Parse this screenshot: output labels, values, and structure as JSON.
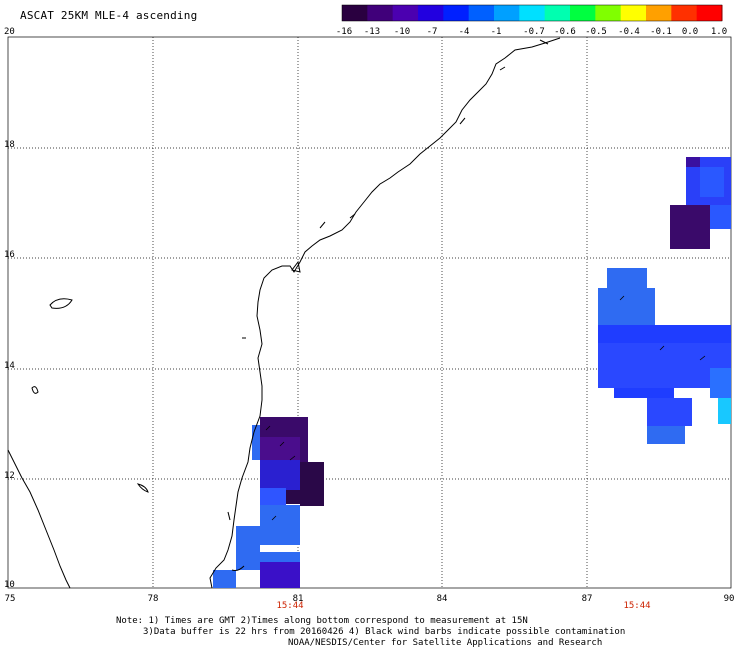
{
  "title": "ASCAT 25KM MLE-4 ascending",
  "colorbar": {
    "ticks": [
      "-16",
      "-13",
      "-10",
      "-7",
      "-4",
      "-1",
      "-0.7",
      "-0.6",
      "-0.5",
      "-0.4",
      "-0.1",
      "0.0",
      "1.0"
    ],
    "colors": [
      "#2a0040",
      "#40007a",
      "#4b00b0",
      "#2200e0",
      "#0020ff",
      "#0060ff",
      "#00a0ff",
      "#00e0ff",
      "#00ffb0",
      "#00ff40",
      "#80ff00",
      "#ffff00",
      "#ffa000",
      "#ff3000",
      "#ff0000"
    ]
  },
  "axes": {
    "lat_labels": [
      "20",
      "18",
      "16",
      "14",
      "12",
      "10"
    ],
    "lon_labels": [
      "75",
      "78",
      "81",
      "84",
      "87",
      "90"
    ],
    "time_labels": [
      "15:44",
      "15:44"
    ]
  },
  "notes": [
    "Note: 1) Times are GMT 2)Times along bottom correspond to measurement at 15N",
    "3)Data buffer is 22 hrs from 20160426 4) Black wind barbs indicate possible contamination",
    "NOAA/NESDIS/Center for Satellite Applications and Research"
  ],
  "colors": {
    "deep_purple": "#3a0a6a",
    "dark_purple": "#4a0d8c",
    "indigo": "#3a10c8",
    "blue": "#1f3dff",
    "mid_blue": "#2858ff",
    "light_blue": "#2f6bf2",
    "cyan": "#18c8ff",
    "red_time": "#cc2200"
  }
}
